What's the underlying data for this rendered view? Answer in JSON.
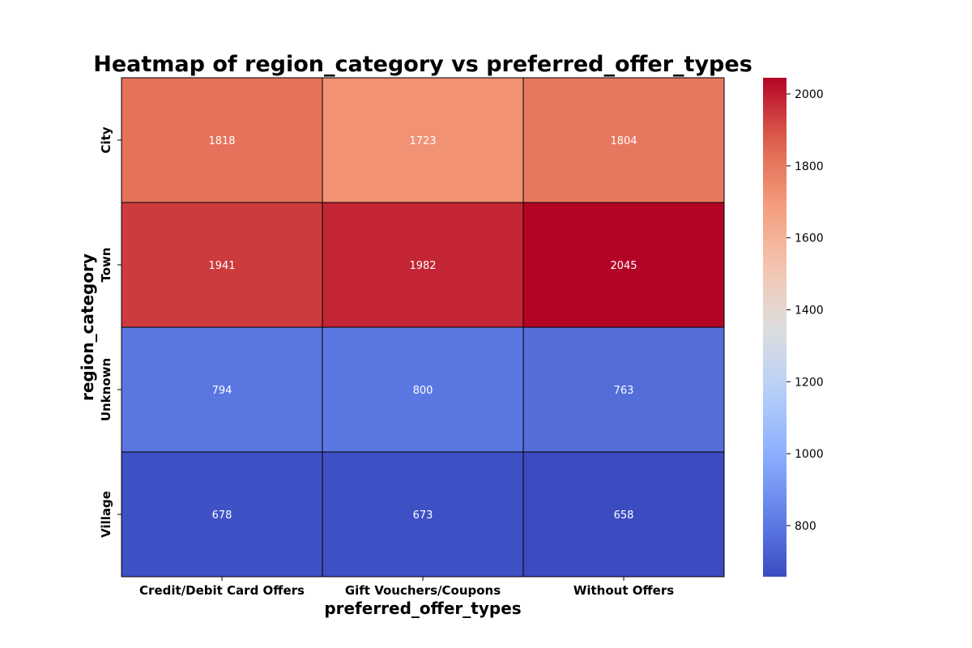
{
  "chart_data": {
    "type": "heatmap",
    "title": "Heatmap of region_category vs preferred_offer_types",
    "xlabel": "preferred_offer_types",
    "ylabel": "region_category",
    "x_categories": [
      "Credit/Debit Card Offers",
      "Gift Vouchers/Coupons",
      "Without Offers"
    ],
    "y_categories": [
      "City",
      "Town",
      "Unknown",
      "Village"
    ],
    "values": [
      [
        1818,
        1723,
        1804
      ],
      [
        1941,
        1982,
        2045
      ],
      [
        794,
        800,
        763
      ],
      [
        678,
        673,
        658
      ]
    ],
    "colormap": "coolwarm",
    "colorbar": {
      "min": 658,
      "max": 2045,
      "ticks": [
        800,
        1000,
        1200,
        1400,
        1600,
        1800,
        2000
      ]
    },
    "cell_text_color": "#ffffff",
    "cell_border_color": "#000000"
  }
}
